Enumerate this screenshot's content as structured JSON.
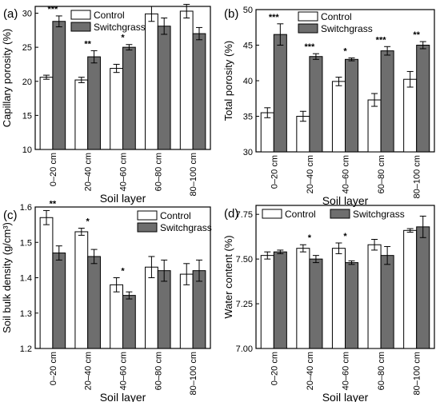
{
  "figure": {
    "colors": {
      "control": "#ffffff",
      "switchgrass": "#6e6e6e",
      "axis": "#000000"
    },
    "legend_labels": [
      "Control",
      "Switchgrass"
    ],
    "xlabel": "Soil layer"
  },
  "chart_data": [
    {
      "panel_label": "(a)",
      "type": "bar",
      "title": "",
      "xlabel": "Soil layer",
      "ylabel": "Capillary porosity (%)",
      "categories": [
        "0–20 cm",
        "20–40 cm",
        "40–60 cm",
        "60–80 cm",
        "80–100 cm"
      ],
      "ylim": [
        10,
        31
      ],
      "yticks": [
        10,
        15,
        20,
        25,
        30
      ],
      "legend": "top-center",
      "series": [
        {
          "name": "Control",
          "values": [
            20.6,
            20.2,
            21.9,
            29.9,
            30.3
          ],
          "errors": [
            0.3,
            0.4,
            0.6,
            1.1,
            1.0
          ]
        },
        {
          "name": "Switchgrass",
          "values": [
            28.8,
            23.6,
            25.0,
            28.1,
            27.0
          ],
          "errors": [
            0.8,
            0.9,
            0.4,
            1.2,
            0.9
          ]
        }
      ],
      "significance": [
        "***",
        "**",
        "*",
        "",
        ""
      ]
    },
    {
      "panel_label": "(b)",
      "type": "bar",
      "title": "",
      "xlabel": "Soil layer",
      "ylabel": "Total porosity (%)",
      "categories": [
        "0–20 cm",
        "20–40 cm",
        "40–60 cm",
        "60–80 cm",
        "80–100 cm"
      ],
      "ylim": [
        30,
        50
      ],
      "yticks": [
        30,
        35,
        40,
        45,
        50
      ],
      "legend": "top-right",
      "series": [
        {
          "name": "Control",
          "values": [
            35.5,
            35.0,
            39.9,
            37.3,
            40.2
          ],
          "errors": [
            0.7,
            0.7,
            0.6,
            0.9,
            1.1
          ]
        },
        {
          "name": "Switchgrass",
          "values": [
            46.5,
            43.4,
            43.0,
            44.2,
            45.0
          ],
          "errors": [
            1.5,
            0.4,
            0.2,
            0.6,
            0.5
          ]
        }
      ],
      "significance": [
        "***",
        "***",
        "*",
        "***",
        "**"
      ]
    },
    {
      "panel_label": "(c)",
      "type": "bar",
      "title": "",
      "xlabel": "Soil layer",
      "ylabel": "Soil bulk density (g/cm³)",
      "categories": [
        "0–20 cm",
        "20–40 cm",
        "40–60 cm",
        "60–80 cm",
        "80–100 cm"
      ],
      "ylim": [
        1.2,
        1.6
      ],
      "yticks": [
        1.2,
        1.3,
        1.4,
        1.5,
        1.6
      ],
      "legend": "top-right",
      "series": [
        {
          "name": "Control",
          "values": [
            1.57,
            1.53,
            1.38,
            1.43,
            1.41
          ],
          "errors": [
            0.02,
            0.01,
            0.02,
            0.03,
            0.03
          ]
        },
        {
          "name": "Switchgrass",
          "values": [
            1.47,
            1.46,
            1.35,
            1.42,
            1.42
          ],
          "errors": [
            0.02,
            0.02,
            0.01,
            0.03,
            0.03
          ]
        }
      ],
      "significance": [
        "**",
        "*",
        "*",
        "",
        ""
      ]
    },
    {
      "panel_label": "(d)",
      "type": "bar",
      "title": "",
      "xlabel": "Soil layer",
      "ylabel": "Water content (%)",
      "categories": [
        "0–20 cm",
        "20–40 cm",
        "40–60 cm",
        "60–80 cm",
        "80–100 cm"
      ],
      "ylim": [
        7.0,
        7.8
      ],
      "yticks": [
        7.0,
        7.25,
        7.5,
        7.75
      ],
      "ytick_labels": [
        "7.00",
        "7.25",
        "7.50",
        "7.75"
      ],
      "legend": "top-center",
      "series": [
        {
          "name": "Control",
          "values": [
            7.52,
            7.56,
            7.56,
            7.58,
            7.66
          ],
          "errors": [
            0.02,
            0.02,
            0.03,
            0.03,
            0.01
          ]
        },
        {
          "name": "Switchgrass",
          "values": [
            7.54,
            7.5,
            7.48,
            7.52,
            7.68
          ],
          "errors": [
            0.01,
            0.02,
            0.01,
            0.05,
            0.06
          ]
        }
      ],
      "significance": [
        "",
        "*",
        "*",
        "",
        ""
      ]
    }
  ]
}
